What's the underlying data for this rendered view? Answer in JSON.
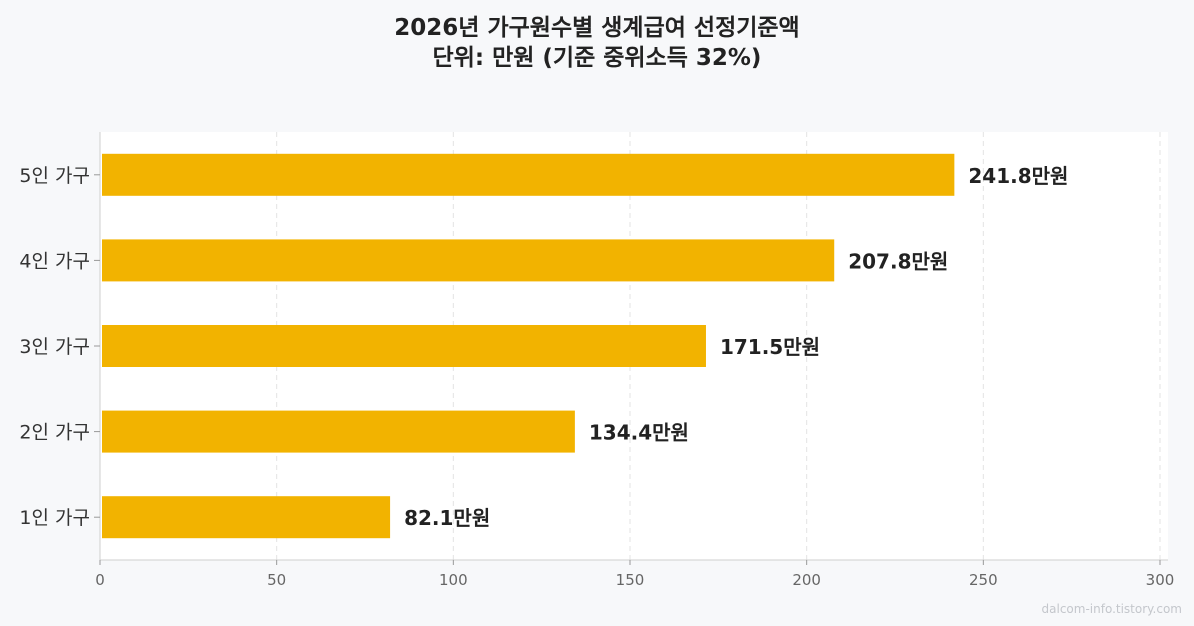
{
  "title_line1": "2026년 가구원수별 생계급여 선정기준액",
  "title_line2": "단위: 만원 (기준 중위소득 32%)",
  "watermark": "dalcom-info.tistory.com",
  "colors": {
    "bar": "#f2b300",
    "plot_bg": "#ffffff",
    "page_bg": "#f7f8fa",
    "grid": "#e3e3e3",
    "text": "#222222",
    "tick": "#666666"
  },
  "chart_data": {
    "type": "bar",
    "orientation": "horizontal",
    "categories": [
      "5인 가구",
      "4인 가구",
      "3인 가구",
      "2인 가구",
      "1인 가구"
    ],
    "values": [
      241.8,
      207.8,
      171.5,
      134.4,
      82.1
    ],
    "value_labels": [
      "241.8만원",
      "207.8만원",
      "171.5만원",
      "134.4만원",
      "82.1만원"
    ],
    "title": "2026년 가구원수별 생계급여 선정기준액",
    "subtitle": "단위: 만원 (기준 중위소득 32%)",
    "xlim": [
      0,
      300
    ],
    "xticks": [
      0,
      50,
      100,
      150,
      200,
      250,
      300
    ],
    "grid": "vertical-dashed",
    "legend": "none"
  }
}
